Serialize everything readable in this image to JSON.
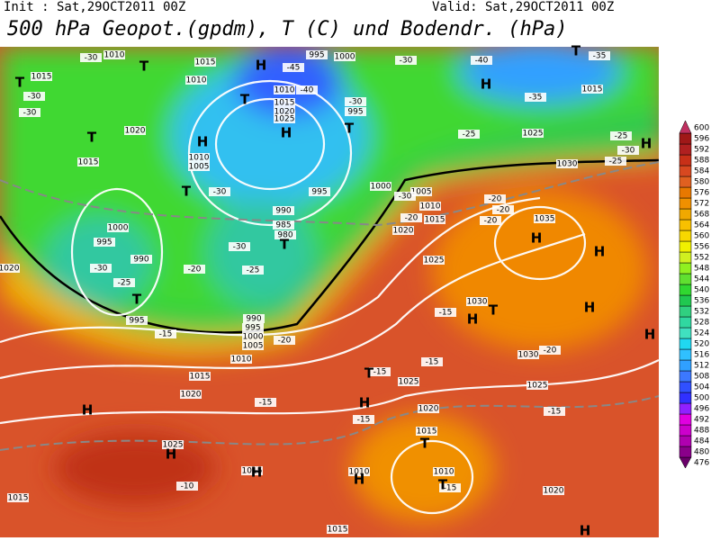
{
  "header": {
    "init": "Init : Sat,29OCT2011 00Z",
    "valid": "Valid: Sat,29OCT2011 00Z",
    "title": "500 hPa Geopot.(gpdm), T (C) und Bodendr. (hPa)"
  },
  "isobar_labels": [
    "1015",
    "1010",
    "1015",
    "1010",
    "995",
    "1000",
    "1010",
    "1015",
    "1020",
    "1025",
    "1020",
    "1015",
    "1010",
    "1005",
    "995",
    "995",
    "1000",
    "1005",
    "1010",
    "1015",
    "1020",
    "990",
    "985",
    "980",
    "1000",
    "995",
    "990",
    "995",
    "990",
    "995",
    "1000",
    "1005",
    "1010",
    "1015",
    "1020",
    "1025",
    "1030",
    "1035",
    "1030",
    "1025",
    "1015",
    "1030",
    "1025",
    "1025",
    "1020",
    "1015",
    "1025",
    "1015",
    "1010",
    "1010",
    "1020",
    "1015",
    "1015",
    "1020"
  ],
  "pressure_centers": [
    "T",
    "H",
    "T",
    "T",
    "T",
    "H",
    "H",
    "T",
    "H",
    "T",
    "H",
    "T",
    "T",
    "T",
    "H",
    "H",
    "H",
    "H",
    "T",
    "H",
    "T",
    "H",
    "H",
    "H",
    "H",
    "T",
    "T",
    "H",
    "H"
  ],
  "temperature_labels": [
    "-30",
    "-30",
    "-30",
    "-45",
    "-40",
    "-30",
    "-30",
    "-40",
    "-35",
    "-35",
    "-25",
    "-25",
    "-30",
    "-25",
    "-30",
    "-30",
    "-20",
    "-20",
    "-20",
    "-20",
    "-30",
    "-25",
    "-20",
    "-30",
    "-25",
    "-15",
    "-20",
    "-15",
    "-20",
    "-15",
    "-15",
    "-15",
    "-15",
    "-15",
    "-10",
    "-15"
  ],
  "colorbar": {
    "levels": [
      476,
      480,
      484,
      488,
      492,
      496,
      500,
      504,
      508,
      512,
      516,
      520,
      524,
      528,
      532,
      536,
      540,
      544,
      548,
      552,
      556,
      560,
      564,
      568,
      572,
      576,
      580,
      584,
      588,
      592,
      596,
      600
    ],
    "colors": [
      "#6a006a",
      "#8a008a",
      "#b000b0",
      "#cc00cc",
      "#e000e0",
      "#9020ff",
      "#3030ff",
      "#3050ff",
      "#3c78ff",
      "#30a0ff",
      "#30c0ff",
      "#20d8f0",
      "#40e0c0",
      "#30d8a0",
      "#30d080",
      "#20c850",
      "#30d830",
      "#60e030",
      "#90f020",
      "#d0f020",
      "#f0f000",
      "#f8d800",
      "#f8c000",
      "#f0a800",
      "#f09000",
      "#e87800",
      "#e06020",
      "#d84820",
      "#c83018",
      "#b02020",
      "#a01818",
      "#c03060"
    ]
  }
}
